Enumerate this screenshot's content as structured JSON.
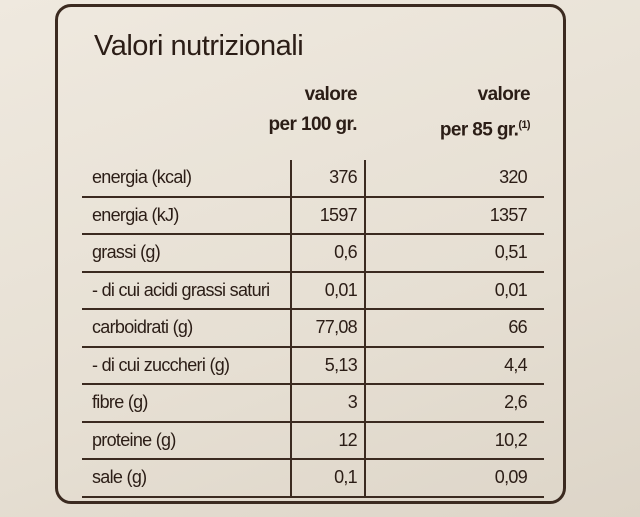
{
  "title": "Valori nutrizionali",
  "columns": [
    {
      "lines": [
        "valore",
        "per 100 gr."
      ]
    },
    {
      "lines": [
        "valore",
        "per 85 gr."
      ],
      "note": "(1)"
    }
  ],
  "rows": [
    [
      "energia (kcal)",
      "376",
      "320"
    ],
    [
      "energia (kJ)",
      "1597",
      "1357"
    ],
    [
      "grassi (g)",
      "0,6",
      "0,51"
    ],
    [
      "- di cui acidi grassi saturi",
      "0,01",
      "0,01"
    ],
    [
      "carboidrati (g)",
      "77,08",
      "66"
    ],
    [
      "- di cui zuccheri (g)",
      "5,13",
      "4,4"
    ],
    [
      "fibre (g)",
      "3",
      "2,6"
    ],
    [
      "proteine (g)",
      "12",
      "10,2"
    ],
    [
      "sale (g)",
      "0,1",
      "0,09"
    ]
  ]
}
